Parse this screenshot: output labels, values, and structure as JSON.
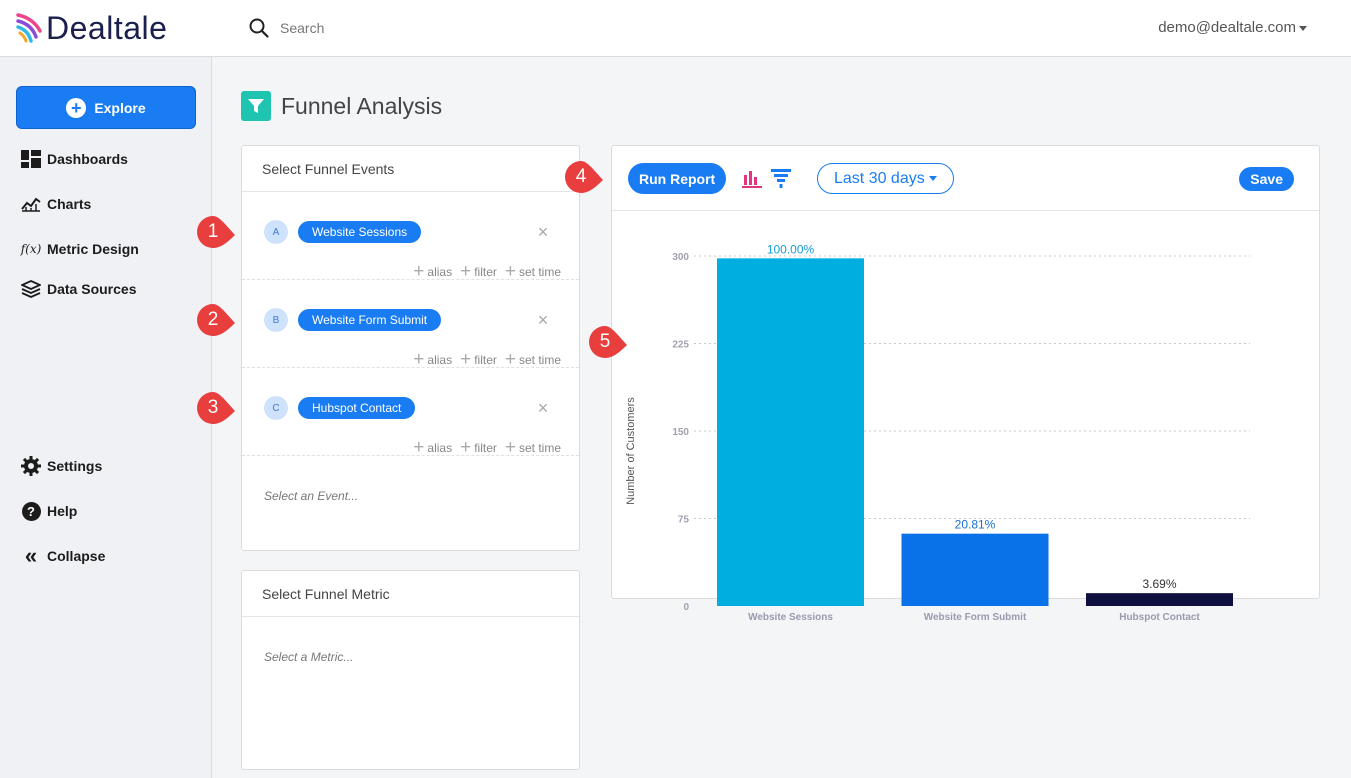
{
  "header": {
    "logo_text": "Dealtale",
    "search_placeholder": "Search",
    "user_email": "demo@dealtale.com"
  },
  "sidebar": {
    "explore_label": "Explore",
    "items": [
      {
        "label": "Dashboards",
        "icon": "dashboard-icon"
      },
      {
        "label": "Charts",
        "icon": "line-chart-icon"
      },
      {
        "label": "Metric Design",
        "icon": "function-icon",
        "icon_text": "f(x)"
      },
      {
        "label": "Data Sources",
        "icon": "layers-icon"
      }
    ],
    "bottom_items": [
      {
        "label": "Settings",
        "icon": "gear-icon"
      },
      {
        "label": "Help",
        "icon": "help-icon",
        "icon_text": "?"
      },
      {
        "label": "Collapse",
        "icon": "double-chevron-left-icon",
        "icon_text": "«"
      }
    ]
  },
  "page": {
    "title": "Funnel Analysis",
    "title_icon": "funnel-icon",
    "accent_color": "#1ec4b0"
  },
  "events_panel": {
    "title": "Select Funnel Events",
    "events": [
      {
        "letter": "A",
        "name": "Website Sessions"
      },
      {
        "letter": "B",
        "name": "Website Form Submit"
      },
      {
        "letter": "C",
        "name": "Hubspot Contact"
      }
    ],
    "actions": {
      "alias": "alias",
      "filter": "filter",
      "set_time": "set time"
    },
    "select_placeholder": "Select an Event..."
  },
  "metric_panel": {
    "title": "Select Funnel Metric",
    "select_placeholder": "Select a Metric..."
  },
  "chart_toolbar": {
    "run_label": "Run Report",
    "date_range": "Last 30 days",
    "save_label": "Save",
    "bar_icon": "bar-chart-icon",
    "funnel_icon": "funnel-icon"
  },
  "callouts": [
    "1",
    "2",
    "3",
    "4",
    "5"
  ],
  "chart_data": {
    "type": "bar",
    "categories": [
      "Website Sessions",
      "Website Form Submit",
      "Hubspot Contact"
    ],
    "values": [
      298,
      62,
      11
    ],
    "data_labels": [
      "100.00%",
      "20.81%",
      "3.69%"
    ],
    "colors": [
      "#00aee0",
      "#0a72e8",
      "#101040"
    ],
    "label_colors": [
      "#1a9ed4",
      "#1a6fd0",
      "#333333"
    ],
    "ylabel": "Number of Customers",
    "yticks": [
      0,
      75,
      150,
      225,
      300
    ],
    "ylim": [
      0,
      300
    ],
    "grid": true
  }
}
